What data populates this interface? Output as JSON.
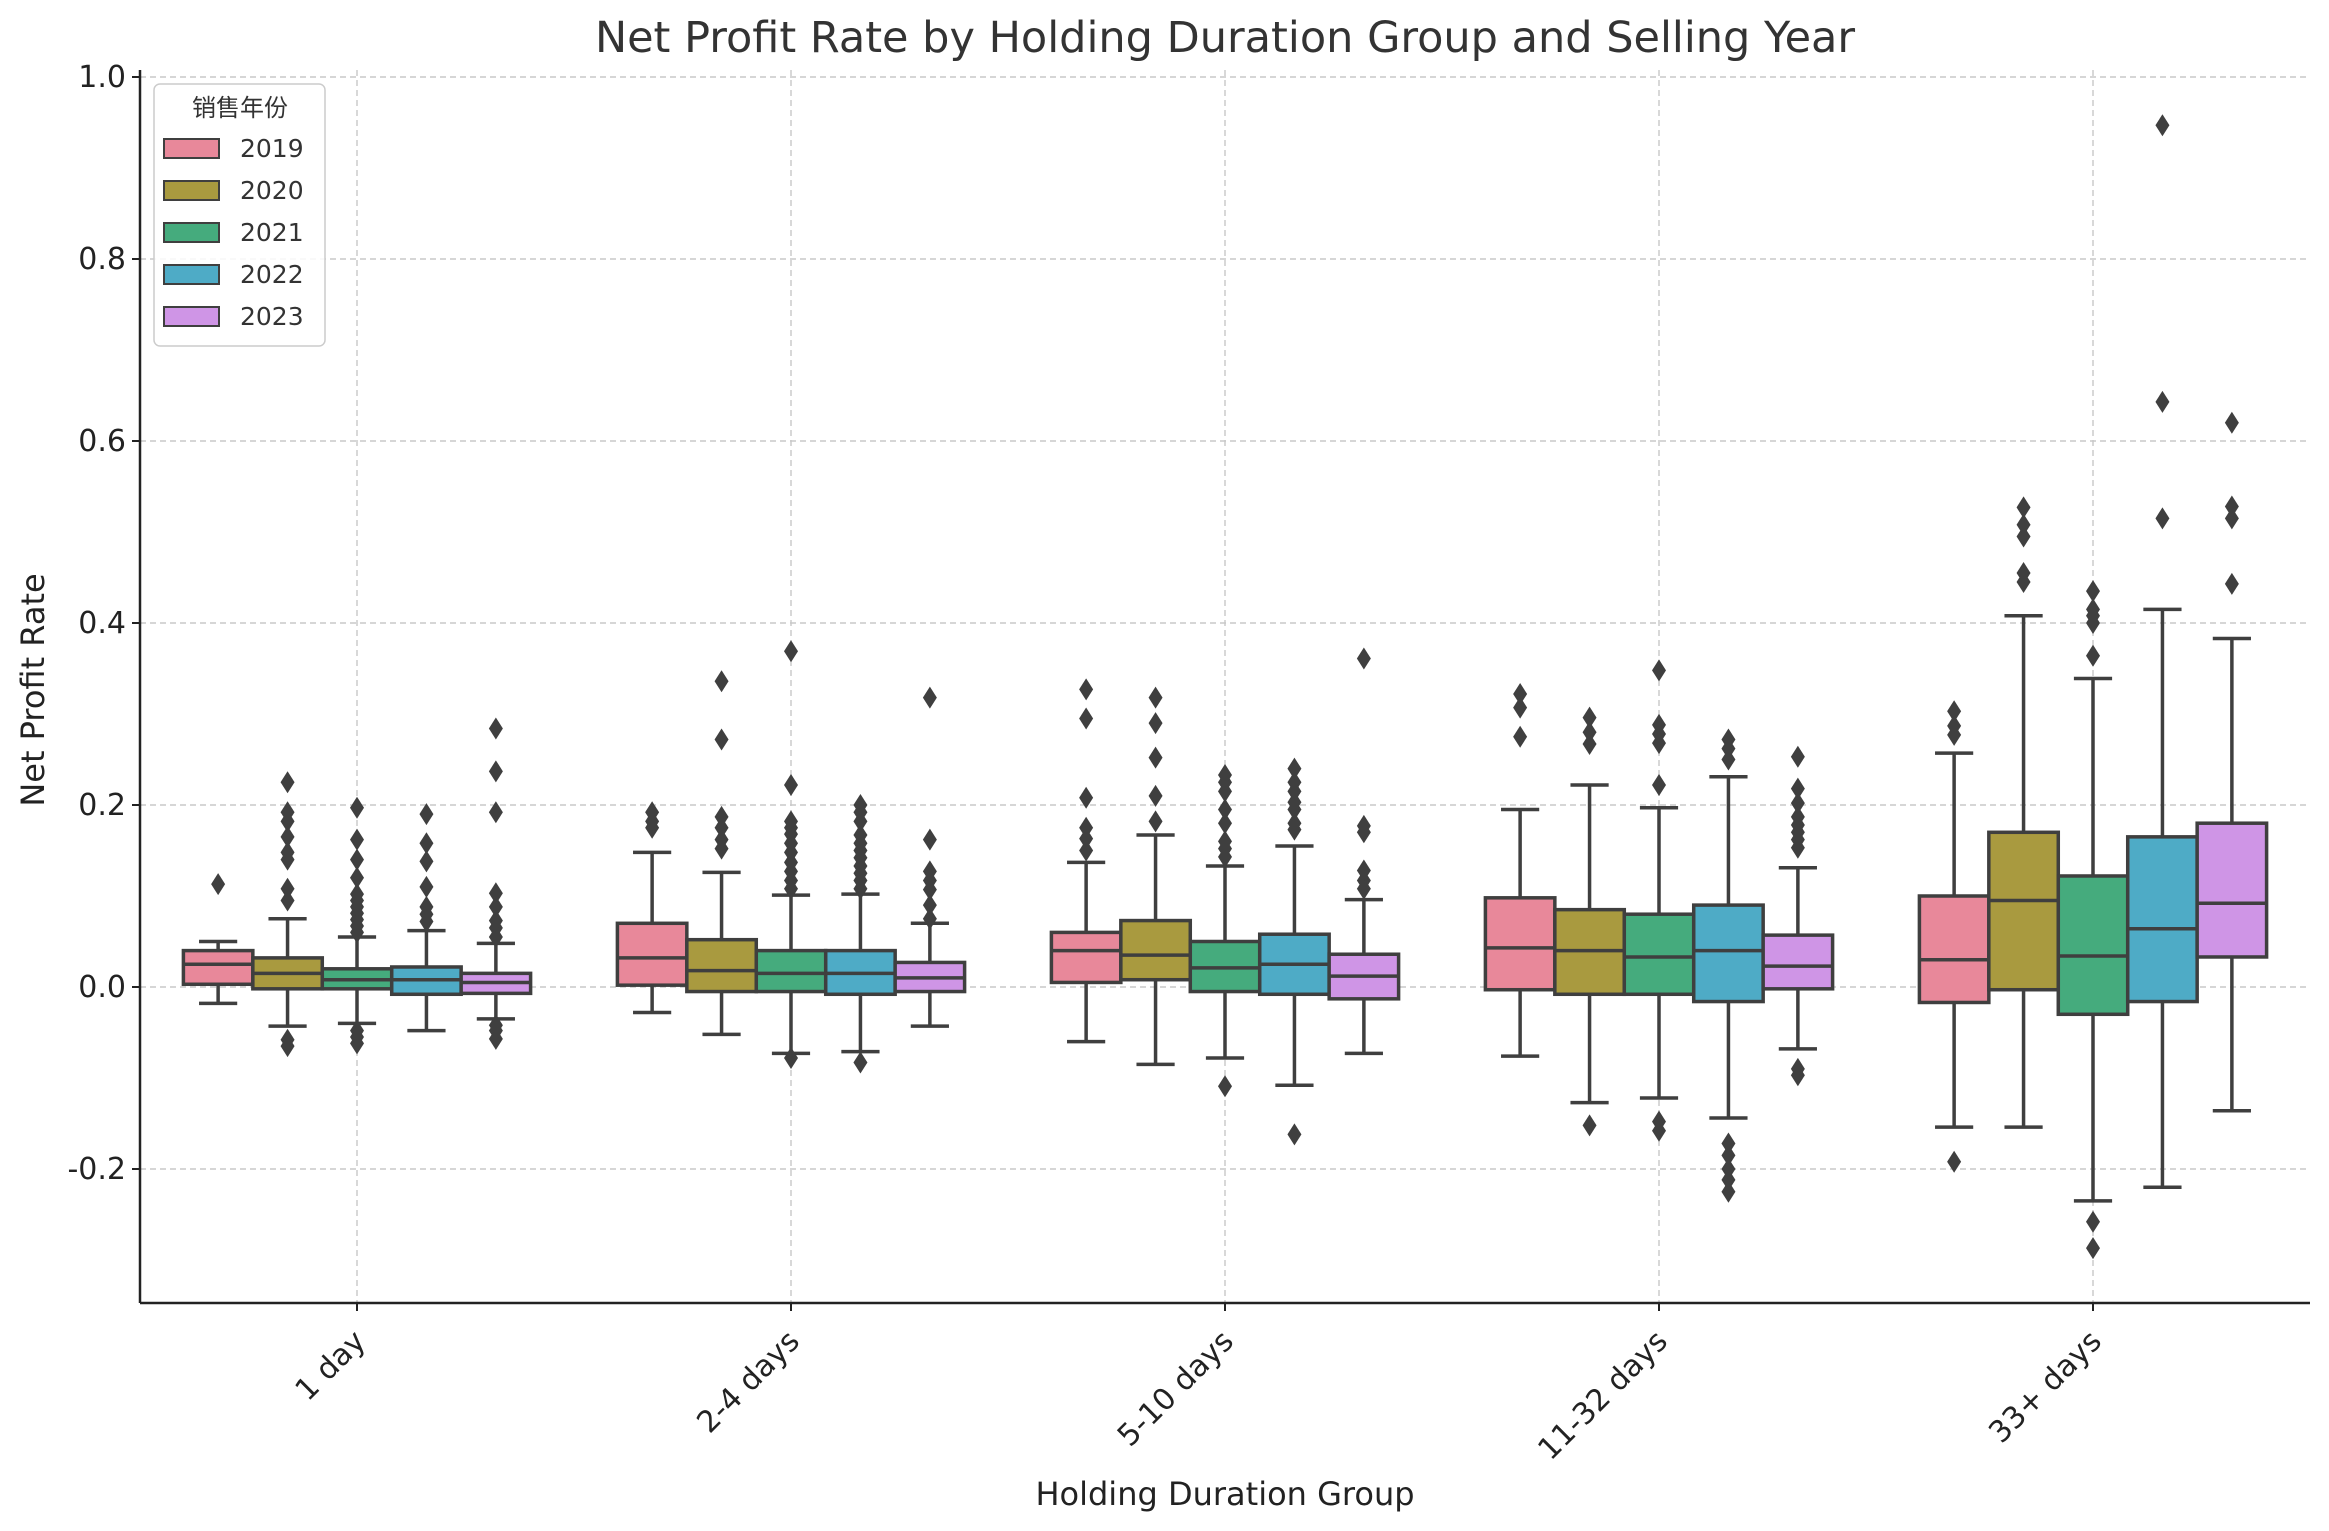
{
  "chart_data": {
    "type": "boxplot",
    "title": "Net Profit Rate by Holding Duration Group and Selling Year",
    "xlabel": "Holding Duration Group",
    "ylabel": "Net Profit Rate",
    "ylim": [
      -0.35,
      1.0
    ],
    "y_ticks": [
      1.0,
      0.8,
      0.6,
      0.4,
      0.2,
      0.0,
      -0.2
    ],
    "y_tick_labels": [
      "1.0",
      "0.8",
      "0.6",
      "0.4",
      "0.2",
      "0.0",
      "-0.2"
    ],
    "grid": true,
    "categories": [
      "1 day",
      "2-4 days",
      "5-10 days",
      "11-32 days",
      "33+ days"
    ],
    "legend": {
      "title": "销售年份",
      "position": "top-left",
      "entries": [
        "2019",
        "2020",
        "2021",
        "2022",
        "2023"
      ]
    },
    "series": [
      {
        "name": "2019",
        "color": "#e8889a",
        "boxes": [
          {
            "q1": 0.003,
            "median": 0.025,
            "q3": 0.04,
            "whislo": -0.018,
            "whishi": 0.05,
            "fliers": [
              0.113
            ]
          },
          {
            "q1": 0.002,
            "median": 0.032,
            "q3": 0.07,
            "whislo": -0.028,
            "whishi": 0.148,
            "fliers": [
              0.175,
              0.182,
              0.192
            ]
          },
          {
            "q1": 0.005,
            "median": 0.04,
            "q3": 0.06,
            "whislo": -0.06,
            "whishi": 0.137,
            "fliers": [
              0.15,
              0.163,
              0.175,
              0.208,
              0.295,
              0.327
            ]
          },
          {
            "q1": -0.003,
            "median": 0.043,
            "q3": 0.098,
            "whislo": -0.076,
            "whishi": 0.195,
            "fliers": [
              0.275,
              0.307,
              0.322
            ]
          },
          {
            "q1": -0.017,
            "median": 0.03,
            "q3": 0.1,
            "whislo": -0.154,
            "whishi": 0.257,
            "fliers": [
              -0.192,
              0.277,
              0.287,
              0.303
            ]
          }
        ]
      },
      {
        "name": "2020",
        "color": "#a99a3f",
        "boxes": [
          {
            "q1": -0.002,
            "median": 0.015,
            "q3": 0.032,
            "whislo": -0.043,
            "whishi": 0.075,
            "fliers": [
              -0.065,
              -0.058,
              0.095,
              0.108,
              0.14,
              0.148,
              0.165,
              0.182,
              0.192,
              0.225
            ]
          },
          {
            "q1": -0.005,
            "median": 0.018,
            "q3": 0.052,
            "whislo": -0.052,
            "whishi": 0.126,
            "fliers": [
              0.152,
              0.162,
              0.175,
              0.187,
              0.272,
              0.336
            ]
          },
          {
            "q1": 0.008,
            "median": 0.035,
            "q3": 0.073,
            "whislo": -0.085,
            "whishi": 0.167,
            "fliers": [
              0.182,
              0.21,
              0.252,
              0.29,
              0.318
            ]
          },
          {
            "q1": -0.008,
            "median": 0.04,
            "q3": 0.085,
            "whislo": -0.127,
            "whishi": 0.222,
            "fliers": [
              -0.152,
              0.267,
              0.28,
              0.296
            ]
          },
          {
            "q1": -0.003,
            "median": 0.095,
            "q3": 0.17,
            "whislo": -0.154,
            "whishi": 0.408,
            "fliers": [
              0.445,
              0.455,
              0.495,
              0.508,
              0.527
            ]
          }
        ]
      },
      {
        "name": "2021",
        "color": "#45ab7d",
        "boxes": [
          {
            "q1": -0.002,
            "median": 0.008,
            "q3": 0.02,
            "whislo": -0.04,
            "whishi": 0.055,
            "fliers": [
              -0.062,
              -0.055,
              -0.048,
              0.06,
              0.067,
              0.074,
              0.081,
              0.088,
              0.095,
              0.102,
              0.12,
              0.14,
              0.162,
              0.197
            ]
          },
          {
            "q1": -0.005,
            "median": 0.015,
            "q3": 0.04,
            "whislo": -0.073,
            "whishi": 0.101,
            "fliers": [
              -0.078,
              0.108,
              0.117,
              0.127,
              0.137,
              0.148,
              0.158,
              0.168,
              0.175,
              0.182,
              0.222,
              0.369
            ]
          },
          {
            "q1": -0.005,
            "median": 0.021,
            "q3": 0.05,
            "whislo": -0.078,
            "whishi": 0.133,
            "fliers": [
              -0.109,
              0.143,
              0.152,
              0.16,
              0.18,
              0.195,
              0.215,
              0.225,
              0.233
            ]
          },
          {
            "q1": -0.008,
            "median": 0.033,
            "q3": 0.08,
            "whislo": -0.122,
            "whishi": 0.197,
            "fliers": [
              -0.158,
              -0.148,
              0.222,
              0.268,
              0.278,
              0.288,
              0.348
            ]
          },
          {
            "q1": -0.03,
            "median": 0.034,
            "q3": 0.122,
            "whislo": -0.235,
            "whishi": 0.339,
            "fliers": [
              -0.287,
              -0.258,
              0.364,
              0.4,
              0.408,
              0.415,
              0.435
            ]
          }
        ]
      },
      {
        "name": "2022",
        "color": "#4eabc6",
        "boxes": [
          {
            "q1": -0.008,
            "median": 0.008,
            "q3": 0.022,
            "whislo": -0.048,
            "whishi": 0.062,
            "fliers": [
              0.072,
              0.08,
              0.088,
              0.11,
              0.138,
              0.158,
              0.19
            ]
          },
          {
            "q1": -0.008,
            "median": 0.015,
            "q3": 0.04,
            "whislo": -0.071,
            "whishi": 0.102,
            "fliers": [
              -0.083,
              0.108,
              0.117,
              0.125,
              0.133,
              0.142,
              0.15,
              0.158,
              0.167,
              0.182,
              0.192,
              0.2
            ]
          },
          {
            "q1": -0.008,
            "median": 0.025,
            "q3": 0.058,
            "whislo": -0.108,
            "whishi": 0.155,
            "fliers": [
              -0.162,
              0.173,
              0.18,
              0.195,
              0.203,
              0.215,
              0.225,
              0.24
            ]
          },
          {
            "q1": -0.016,
            "median": 0.04,
            "q3": 0.09,
            "whislo": -0.144,
            "whishi": 0.231,
            "fliers": [
              -0.225,
              -0.212,
              -0.2,
              -0.185,
              -0.172,
              0.25,
              0.262,
              0.272
            ]
          },
          {
            "q1": -0.016,
            "median": 0.064,
            "q3": 0.165,
            "whislo": -0.22,
            "whishi": 0.415,
            "fliers": [
              0.515,
              0.643,
              0.947
            ]
          }
        ]
      },
      {
        "name": "2023",
        "color": "#cf95e6",
        "boxes": [
          {
            "q1": -0.007,
            "median": 0.005,
            "q3": 0.015,
            "whislo": -0.035,
            "whishi": 0.048,
            "fliers": [
              -0.057,
              -0.048,
              -0.042,
              0.055,
              0.065,
              0.073,
              0.088,
              0.103,
              0.192,
              0.237,
              0.284
            ]
          },
          {
            "q1": -0.005,
            "median": 0.01,
            "q3": 0.027,
            "whislo": -0.043,
            "whishi": 0.07,
            "fliers": [
              0.075,
              0.09,
              0.107,
              0.117,
              0.127,
              0.162,
              0.318
            ]
          },
          {
            "q1": -0.013,
            "median": 0.012,
            "q3": 0.036,
            "whislo": -0.073,
            "whishi": 0.096,
            "fliers": [
              0.108,
              0.117,
              0.128,
              0.17,
              0.177,
              0.361
            ]
          },
          {
            "q1": -0.002,
            "median": 0.023,
            "q3": 0.057,
            "whislo": -0.068,
            "whishi": 0.131,
            "fliers": [
              -0.097,
              -0.09,
              0.153,
              0.162,
              0.17,
              0.178,
              0.187,
              0.202,
              0.218,
              0.253
            ]
          },
          {
            "q1": 0.033,
            "median": 0.092,
            "q3": 0.18,
            "whislo": -0.136,
            "whishi": 0.383,
            "fliers": [
              0.443,
              0.515,
              0.528,
              0.62
            ]
          }
        ]
      }
    ]
  }
}
